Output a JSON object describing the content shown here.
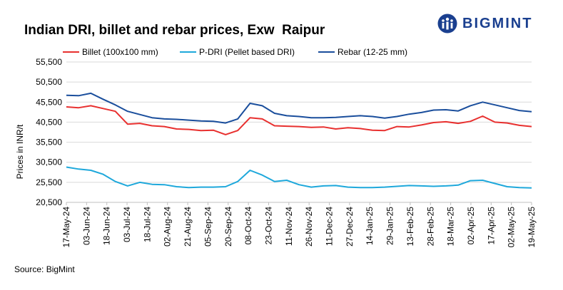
{
  "title": "Indian DRI, billet and rebar prices, Exw  Raipur",
  "brand": "BIGMINT",
  "source": "Source: BigMint",
  "chart_data": {
    "type": "line",
    "ylabel": "Prices in INR/t",
    "ylim": [
      20500,
      55500
    ],
    "yticks": [
      20500,
      25500,
      30500,
      35500,
      40500,
      45500,
      50500,
      55500
    ],
    "ytick_labels": [
      "20,500",
      "25,500",
      "30,500",
      "35,500",
      "40,500",
      "45,500",
      "50,500",
      "55,500"
    ],
    "x_tick_labels": [
      "17-May-24",
      "03-Jun-24",
      "18-Jun-24",
      "03-Jul-24",
      "18-Jul-24",
      "02-Aug-24",
      "21-Aug-24",
      "05-Sep-24",
      "20-Sep-24",
      "08-Oct-24",
      "23-Oct-24",
      "11-Nov-24",
      "26-Nov-24",
      "11-Dec-24",
      "27-Dec-24",
      "14-Jan-25",
      "29-Jan-25",
      "13-Feb-25",
      "28-Feb-25",
      "18-Mar-25",
      "02-Apr-25",
      "17-Apr-25",
      "02-May-25",
      "19-May-25"
    ],
    "grid": "horizontal",
    "legend": "top-left",
    "series": [
      {
        "name": "Billet (100x100 mm)",
        "color": "#e8302f",
        "values": [
          44300,
          44100,
          44600,
          43900,
          43200,
          40000,
          40200,
          39600,
          39400,
          38800,
          38700,
          38400,
          38500,
          37400,
          38400,
          41600,
          41300,
          39600,
          39500,
          39400,
          39200,
          39300,
          38800,
          39100,
          38900,
          38500,
          38400,
          39400,
          39300,
          39800,
          40400,
          40600,
          40200,
          40700,
          42000,
          40500,
          40300,
          39700,
          39400
        ]
      },
      {
        "name": "P-DRI (Pellet based DRI)",
        "color": "#1ea8db",
        "values": [
          29300,
          28800,
          28500,
          27500,
          25700,
          24600,
          25500,
          25000,
          24900,
          24400,
          24200,
          24300,
          24300,
          24400,
          25700,
          28500,
          27300,
          25700,
          26000,
          24900,
          24300,
          24600,
          24700,
          24300,
          24200,
          24200,
          24300,
          24500,
          24700,
          24600,
          24500,
          24600,
          24800,
          25900,
          26000,
          25200,
          24400,
          24200,
          24100
        ]
      },
      {
        "name": "Rebar (12-25 mm)",
        "color": "#1a4e9c",
        "values": [
          47200,
          47100,
          47700,
          46200,
          44800,
          43200,
          42400,
          41600,
          41300,
          41200,
          41000,
          40800,
          40700,
          40300,
          41300,
          45200,
          44600,
          42700,
          42100,
          41900,
          41600,
          41600,
          41700,
          41900,
          42100,
          41900,
          41500,
          41900,
          42500,
          42900,
          43500,
          43600,
          43300,
          44600,
          45500,
          44800,
          44100,
          43400,
          43100
        ]
      }
    ]
  }
}
